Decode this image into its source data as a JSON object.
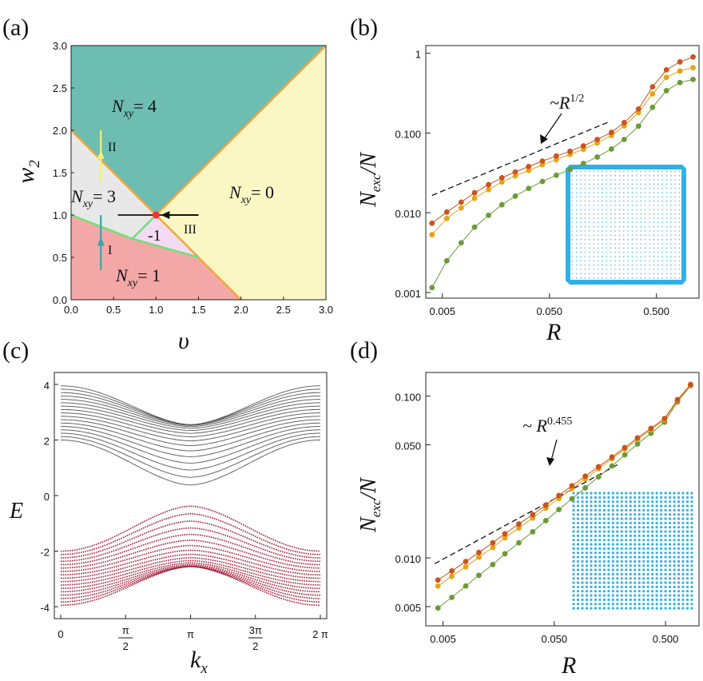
{
  "panel_labels": {
    "a": "(a)",
    "b": "(b)",
    "c": "(c)",
    "d": "(d)"
  },
  "colors": {
    "teal": "#6dbdb2",
    "yellow": "#fbf7c4",
    "grey": "#e8e8e8",
    "pink": "#f4a7a7",
    "lilac": "#f3dcf3",
    "orange_line": "#f0a640",
    "green_line": "#6fe07a",
    "arrow_II": "#f1f17a",
    "arrow_I": "#3aa7a6",
    "dot": "#ee3333",
    "series_red": "#c9541f",
    "series_orange": "#e5a417",
    "series_green": "#6b9b38",
    "inset": "#2fb0e8",
    "band_grey": "#555555",
    "band_red": "#a5203a"
  },
  "phase_labels": {
    "n4": {
      "sym": "N",
      "sub": "xy",
      "val": "= 4"
    },
    "n3": {
      "sym": "N",
      "sub": "xy",
      "val": "= 3"
    },
    "n0": {
      "sym": "N",
      "sub": "xy",
      "val": "= 0"
    },
    "n1": {
      "sym": "N",
      "sub": "xy",
      "val": "= 1"
    },
    "m1": "-1",
    "I": "I",
    "II": "II",
    "III": "III"
  },
  "scaling": {
    "b": "~R",
    "b_exp": "1/2",
    "d": "~ R",
    "d_exp": "0.455"
  },
  "chart_data": [
    {
      "type": "area",
      "panel": "a",
      "xlabel": "υ",
      "ylabel": "w₂",
      "xlim": [
        0,
        3
      ],
      "ylim": [
        0,
        3
      ],
      "xticks": [
        "0.0",
        "0.5",
        "1.0",
        "1.5",
        "2.0",
        "2.5",
        "3.0"
      ],
      "yticks": [
        "0.0",
        "0.5",
        "1.0",
        "1.5",
        "2.0",
        "2.5",
        "3.0"
      ],
      "critical_point": [
        1.0,
        1.0
      ],
      "regions": [
        {
          "label": "Nxy = 4",
          "polygon": [
            [
              0,
              2
            ],
            [
              0,
              3
            ],
            [
              3,
              3
            ],
            [
              1,
              1
            ]
          ]
        },
        {
          "label": "Nxy = 0",
          "polygon": [
            [
              1,
              1
            ],
            [
              3,
              3
            ],
            [
              3,
              0
            ],
            [
              2,
              0
            ]
          ]
        },
        {
          "label": "Nxy = 3",
          "polygon": [
            [
              0,
              1
            ],
            [
              0,
              2
            ],
            [
              1,
              1
            ],
            [
              0.72,
              0.72
            ]
          ]
        },
        {
          "label": "-1",
          "polygon": [
            [
              0.72,
              0.72
            ],
            [
              1,
              1
            ],
            [
              1.5,
              0.5
            ]
          ]
        },
        {
          "label": "Nxy = 1",
          "polygon": [
            [
              0,
              0
            ],
            [
              0,
              1
            ],
            [
              0.72,
              0.72
            ],
            [
              1.5,
              0.5
            ],
            [
              2,
              0
            ]
          ]
        }
      ],
      "paths": [
        {
          "name": "II",
          "x": 0.35,
          "y": [
            1.4,
            2.0
          ]
        },
        {
          "name": "I",
          "x": 0.35,
          "y": [
            0.35,
            1.0
          ]
        },
        {
          "name": "III",
          "y": 1.0,
          "x": [
            1.5,
            1.0
          ]
        },
        {
          "name": "horizontal segment",
          "y": 1.0,
          "x": [
            0.55,
            1.45
          ]
        }
      ]
    },
    {
      "type": "line",
      "panel": "b",
      "xlabel": "R",
      "ylabel": "N_exc/N",
      "log_x": true,
      "log_y": true,
      "xlim": [
        0.0035,
        1.25
      ],
      "ylim": [
        0.00085,
        1.25
      ],
      "xticks": [
        "0.005",
        "0.050",
        "0.500"
      ],
      "yticks": [
        "0.001",
        "0.010",
        "0.100",
        "1"
      ],
      "x": [
        0.004,
        0.0055,
        0.0075,
        0.01,
        0.0135,
        0.018,
        0.024,
        0.032,
        0.043,
        0.058,
        0.078,
        0.104,
        0.14,
        0.19,
        0.25,
        0.34,
        0.46,
        0.62,
        0.83,
        1.1
      ],
      "series": [
        {
          "values": [
            0.0074,
            0.0102,
            0.0136,
            0.0178,
            0.0225,
            0.0275,
            0.0325,
            0.038,
            0.0445,
            0.0515,
            0.059,
            0.069,
            0.083,
            0.102,
            0.135,
            0.2,
            0.38,
            0.62,
            0.78,
            0.9
          ]
        },
        {
          "values": [
            0.0053,
            0.0085,
            0.0115,
            0.0152,
            0.0195,
            0.0243,
            0.029,
            0.034,
            0.04,
            0.0463,
            0.054,
            0.0625,
            0.075,
            0.093,
            0.123,
            0.18,
            0.31,
            0.5,
            0.6,
            0.66
          ]
        },
        {
          "values": [
            0.00115,
            0.0025,
            0.0042,
            0.0066,
            0.0093,
            0.0126,
            0.0162,
            0.0202,
            0.0247,
            0.0296,
            0.035,
            0.0415,
            0.05,
            0.063,
            0.083,
            0.122,
            0.21,
            0.34,
            0.43,
            0.47
          ]
        }
      ],
      "guide": {
        "x": [
          0.004,
          0.18
        ],
        "y": [
          0.0165,
          0.138
        ]
      }
    },
    {
      "type": "line",
      "panel": "c",
      "xlabel": "k_x",
      "ylabel": "E",
      "xlim": [
        0,
        6.2832
      ],
      "ylim": [
        -4.2,
        4.2
      ],
      "xticks": [
        "0",
        "π/2",
        "π",
        "3π/2",
        "2 π"
      ],
      "yticks": [
        "-4",
        "-2",
        "0",
        "2",
        "4"
      ],
      "upper_bands": {
        "count": 17,
        "min_edge": 0.38,
        "top_edge": 3.95,
        "bottom_band_k0": 2.0
      },
      "lower_bands": {
        "count": 17,
        "max_edge": -0.38,
        "bottom_edge": -3.95,
        "top_band_k0": -2.0
      }
    },
    {
      "type": "line",
      "panel": "d",
      "xlabel": "R",
      "ylabel": "N_exc/N",
      "log_x": true,
      "log_y": true,
      "xlim": [
        0.0035,
        1.0
      ],
      "ylim": [
        0.0038,
        0.14
      ],
      "xticks": [
        "0.005",
        "0.050",
        "0.500"
      ],
      "yticks": [
        "0.005",
        "0.010",
        "0.050",
        "0.100"
      ],
      "x": [
        0.0045,
        0.006,
        0.008,
        0.0105,
        0.014,
        0.018,
        0.024,
        0.032,
        0.042,
        0.055,
        0.072,
        0.095,
        0.125,
        0.165,
        0.215,
        0.28,
        0.37,
        0.49,
        0.64,
        0.84
      ],
      "series": [
        {
          "values": [
            0.0073,
            0.0083,
            0.0095,
            0.0108,
            0.0124,
            0.0141,
            0.0162,
            0.0185,
            0.0212,
            0.0243,
            0.0279,
            0.032,
            0.0366,
            0.042,
            0.048,
            0.0552,
            0.0632,
            0.0727,
            0.095,
            0.118
          ]
        },
        {
          "values": [
            0.0067,
            0.0077,
            0.0088,
            0.0101,
            0.0116,
            0.0133,
            0.0153,
            0.0176,
            0.0203,
            0.0233,
            0.0268,
            0.0308,
            0.0355,
            0.041,
            0.047,
            0.054,
            0.062,
            0.0715,
            0.094,
            0.117
          ]
        },
        {
          "values": [
            0.0049,
            0.0057,
            0.0067,
            0.0078,
            0.0091,
            0.0106,
            0.0124,
            0.0145,
            0.017,
            0.0199,
            0.0232,
            0.0271,
            0.0317,
            0.037,
            0.0433,
            0.0506,
            0.059,
            0.069,
            0.092,
            0.116
          ]
        }
      ],
      "guide": {
        "x": [
          0.0042,
          0.19
        ],
        "y": [
          0.0092,
          0.038
        ]
      }
    }
  ]
}
